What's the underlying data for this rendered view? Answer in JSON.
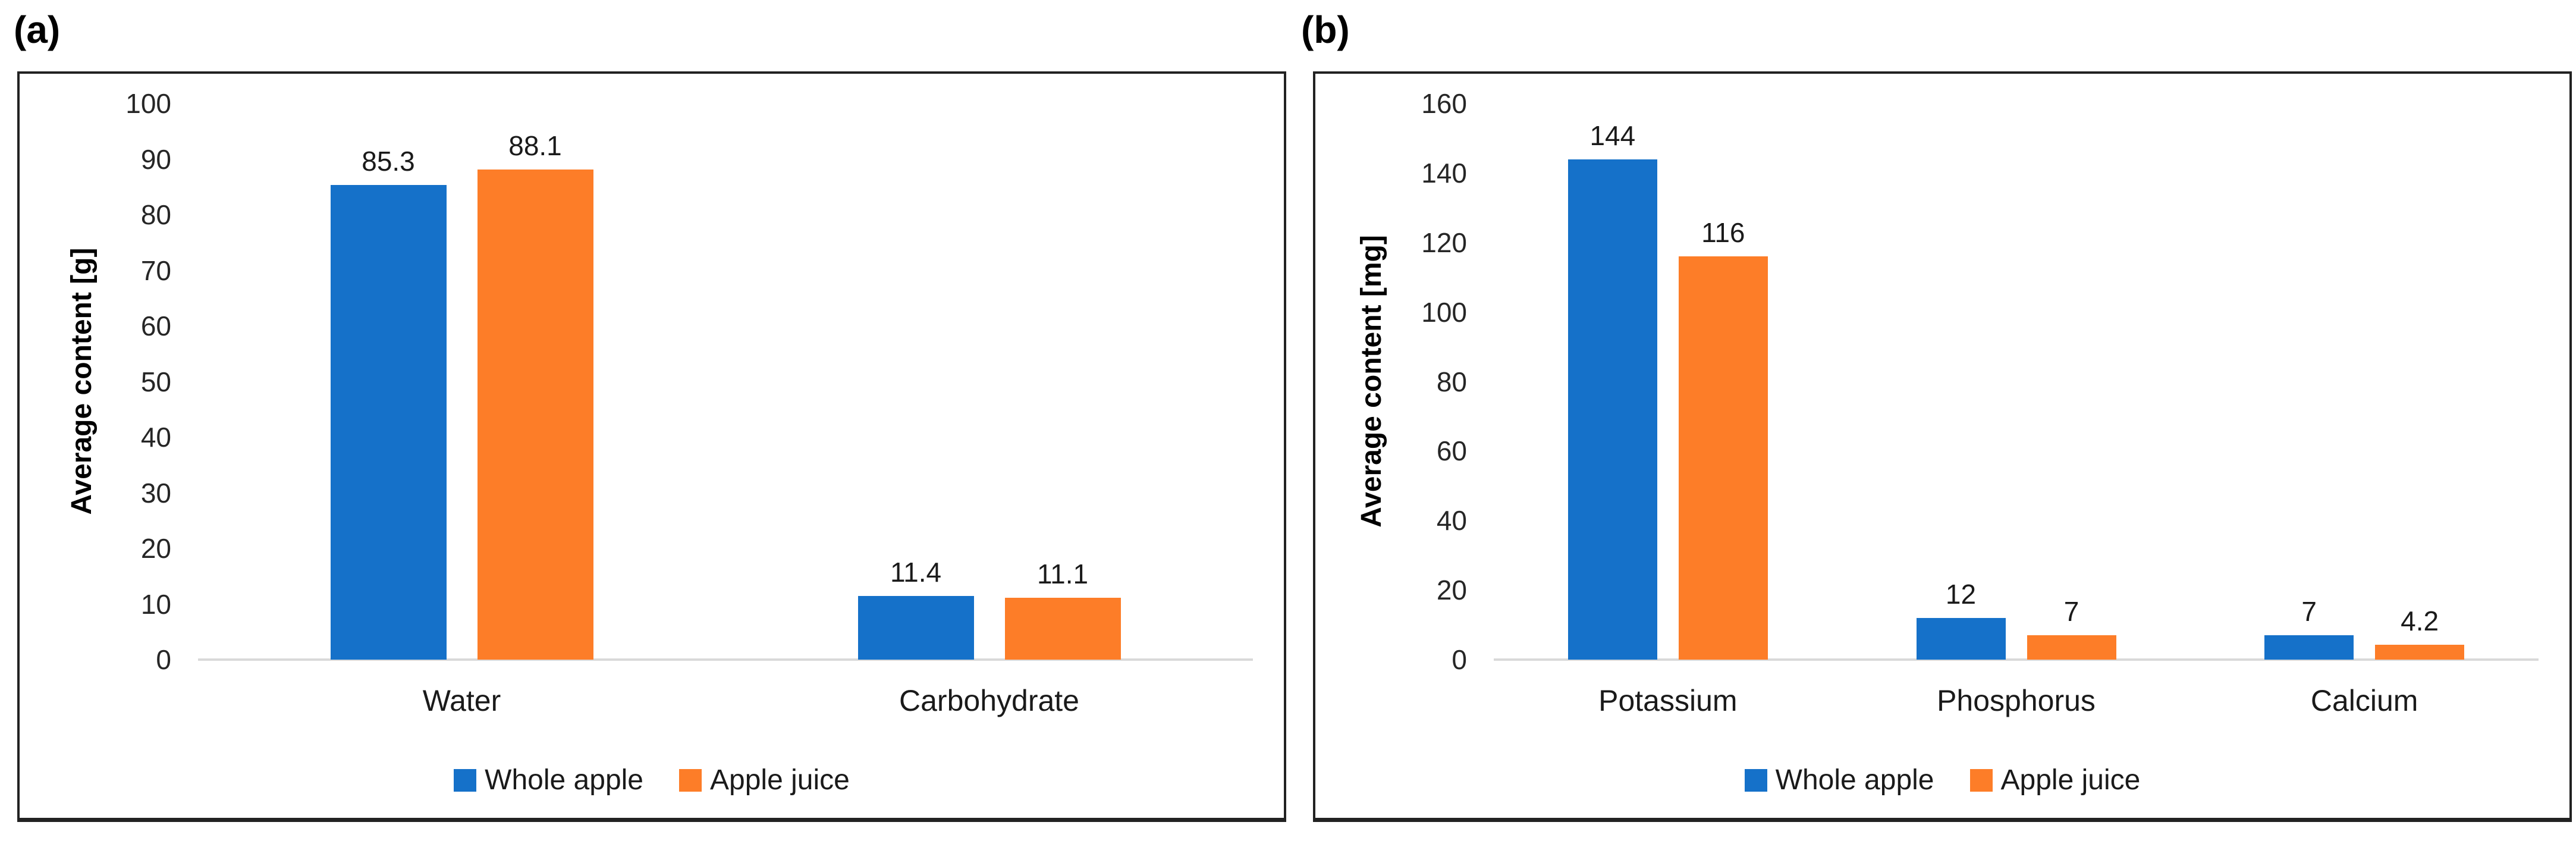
{
  "styles": {
    "series_blue": "#1571C9",
    "series_orange": "#FD7D28",
    "axis_line_color": "#D9D9D9",
    "border_color": "#222222",
    "text_color": "#1A1A1A"
  },
  "chart_data": [
    {
      "type": "bar",
      "panel_label": "(a)",
      "ylabel": "Average content [g]",
      "xlabel": "",
      "categories": [
        "Water",
        "Carbohydrate"
      ],
      "series": [
        {
          "name": "Whole apple",
          "color": "#1571C9",
          "values": [
            85.3,
            11.4
          ]
        },
        {
          "name": "Apple juice",
          "color": "#FD7D28",
          "values": [
            88.1,
            11.1
          ]
        }
      ],
      "data_labels": [
        [
          "85.3",
          "11.4"
        ],
        [
          "88.1",
          "11.1"
        ]
      ],
      "ylim": [
        0,
        100
      ],
      "yticks": [
        0,
        10,
        20,
        30,
        40,
        50,
        60,
        70,
        80,
        90,
        100
      ],
      "grid": false,
      "legend_position": "bottom"
    },
    {
      "type": "bar",
      "panel_label": "(b)",
      "ylabel": "Average content [mg]",
      "xlabel": "",
      "categories": [
        "Potassium",
        "Phosphorus",
        "Calcium"
      ],
      "series": [
        {
          "name": "Whole apple",
          "color": "#1571C9",
          "values": [
            144,
            12,
            7
          ]
        },
        {
          "name": "Apple juice",
          "color": "#FD7D28",
          "values": [
            116,
            7,
            4.2
          ]
        }
      ],
      "data_labels": [
        [
          "144",
          "12",
          "7"
        ],
        [
          "116",
          "7",
          "4.2"
        ]
      ],
      "ylim": [
        0,
        160
      ],
      "yticks": [
        0,
        20,
        40,
        60,
        80,
        100,
        120,
        140,
        160
      ],
      "grid": false,
      "legend_position": "bottom"
    }
  ]
}
